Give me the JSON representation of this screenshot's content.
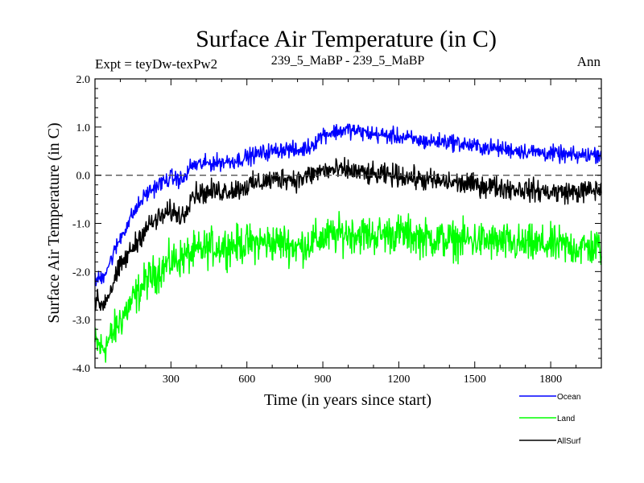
{
  "chart_data": {
    "type": "line",
    "title": "Surface Air Temperature (in C)",
    "subtitle_left": "Expt = teyDw-texPw2",
    "subtitle_center": "239_5_MaBP - 239_5_MaBP",
    "subtitle_right": "Ann",
    "xlabel": "Time (in years since start)",
    "ylabel": "Surface Air Temperature (in C)",
    "xlim": [
      0,
      2000
    ],
    "ylim": [
      -4.0,
      2.0
    ],
    "xticks": [
      300,
      600,
      900,
      1200,
      1500,
      1800
    ],
    "yticks": [
      -4.0,
      -3.0,
      -2.0,
      -1.0,
      0.0,
      1.0,
      2.0
    ],
    "xtick_labels": [
      "300",
      "600",
      "900",
      "1200",
      "1500",
      "1800"
    ],
    "ytick_labels": [
      "-4.0",
      "-3.0",
      "-2.0",
      "-1.0",
      "0.0",
      "1.0",
      "2.0"
    ],
    "reference_line": {
      "y": 0.0,
      "style": "dashed"
    },
    "legend_placement": "bottom-right",
    "series": [
      {
        "name": "Ocean",
        "color": "#0000ff",
        "noise": 0.12,
        "x": [
          0,
          30,
          60,
          100,
          150,
          200,
          250,
          300,
          350,
          380,
          450,
          550,
          650,
          750,
          800,
          850,
          900,
          1000,
          1100,
          1200,
          1300,
          1400,
          1500,
          1600,
          1700,
          1800,
          1900,
          2000
        ],
        "y": [
          -2.2,
          -2.1,
          -1.8,
          -1.3,
          -0.8,
          -0.4,
          -0.2,
          -0.05,
          -0.1,
          0.2,
          0.25,
          0.3,
          0.45,
          0.55,
          0.5,
          0.6,
          0.85,
          0.95,
          0.85,
          0.8,
          0.7,
          0.7,
          0.6,
          0.55,
          0.5,
          0.45,
          0.4,
          0.45
        ]
      },
      {
        "name": "Land",
        "color": "#00ff00",
        "noise": 0.28,
        "x": [
          0,
          30,
          60,
          100,
          150,
          200,
          250,
          300,
          350,
          400,
          450,
          550,
          650,
          750,
          800,
          900,
          1000,
          1100,
          1200,
          1300,
          1400,
          1500,
          1600,
          1700,
          1800,
          1900,
          2000
        ],
        "y": [
          -3.5,
          -3.6,
          -3.4,
          -3.0,
          -2.6,
          -2.2,
          -2.0,
          -1.8,
          -1.7,
          -1.6,
          -1.5,
          -1.45,
          -1.4,
          -1.4,
          -1.5,
          -1.3,
          -1.2,
          -1.25,
          -1.2,
          -1.3,
          -1.35,
          -1.35,
          -1.4,
          -1.45,
          -1.45,
          -1.5,
          -1.5
        ]
      },
      {
        "name": "AllSurf",
        "color": "#000000",
        "noise": 0.16,
        "x": [
          0,
          30,
          60,
          100,
          150,
          200,
          250,
          300,
          350,
          380,
          450,
          550,
          650,
          750,
          800,
          850,
          900,
          1000,
          1100,
          1200,
          1300,
          1400,
          1500,
          1600,
          1700,
          1800,
          1900,
          2000
        ],
        "y": [
          -2.6,
          -2.7,
          -2.4,
          -1.9,
          -1.5,
          -1.1,
          -0.9,
          -0.75,
          -0.85,
          -0.4,
          -0.35,
          -0.3,
          -0.15,
          -0.05,
          -0.1,
          0.0,
          0.1,
          0.1,
          0.0,
          0.0,
          -0.1,
          -0.15,
          -0.2,
          -0.25,
          -0.3,
          -0.35,
          -0.35,
          -0.3
        ]
      }
    ]
  }
}
